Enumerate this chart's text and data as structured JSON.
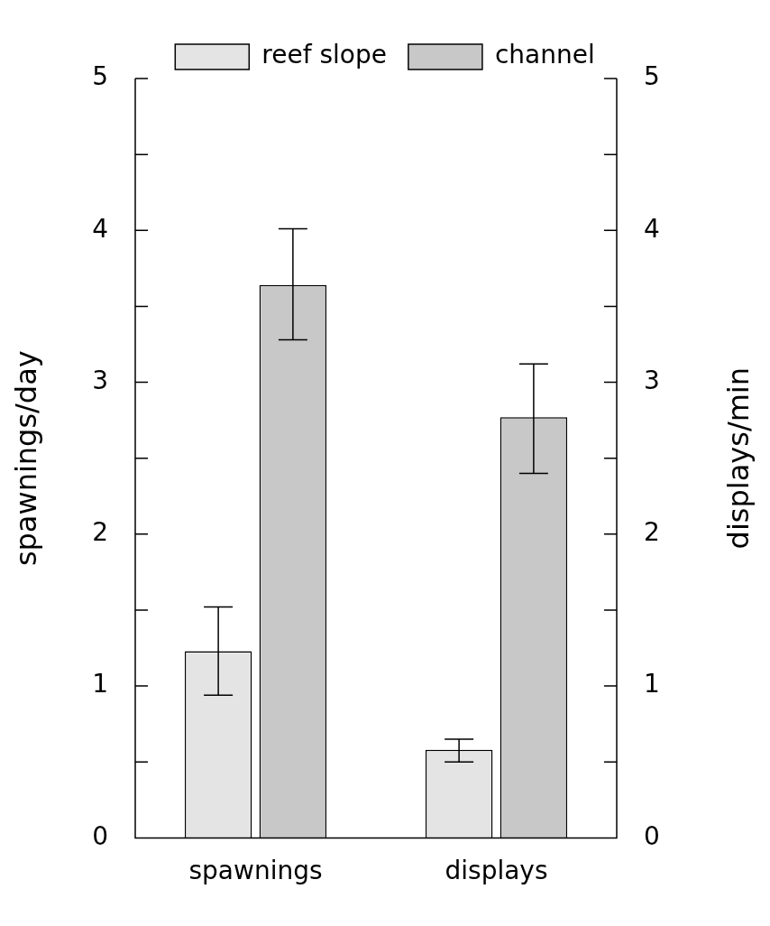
{
  "chart_data": {
    "type": "bar",
    "categories": [
      "spawnings",
      "displays"
    ],
    "series": [
      {
        "name": "reef slope",
        "color": "#e4e4e4",
        "values": [
          1.23,
          0.58
        ],
        "errors": [
          [
            0.94,
            1.52
          ],
          [
            0.5,
            0.65
          ]
        ]
      },
      {
        "name": "channel",
        "color": "#c8c8c8",
        "values": [
          3.64,
          2.77
        ],
        "errors": [
          [
            3.28,
            4.01
          ],
          [
            2.4,
            3.12
          ]
        ]
      }
    ],
    "ylabel": "spawnings/day",
    "y2label": "displays/min",
    "ylim": [
      0,
      5
    ],
    "yticks": [
      0,
      {
        "value": 0.5,
        "label": null
      },
      1,
      {
        "value": 1.5,
        "label": null
      },
      2,
      {
        "value": 2.5,
        "label": null
      },
      3,
      {
        "value": 3.5,
        "label": null
      },
      4,
      {
        "value": 4.5,
        "label": null
      },
      5
    ],
    "y2lim": [
      0,
      5
    ],
    "y2ticks": [
      0,
      {
        "value": 0.5,
        "label": null
      },
      1,
      {
        "value": 1.5,
        "label": null
      },
      2,
      {
        "value": 2.5,
        "label": null
      },
      3,
      {
        "value": 3.5,
        "label": null
      },
      4,
      {
        "value": 4.5,
        "label": null
      },
      5
    ],
    "legend": "top",
    "grid": false
  }
}
